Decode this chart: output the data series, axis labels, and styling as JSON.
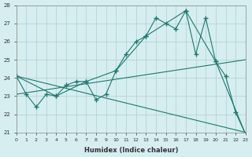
{
  "xlabel": "Humidex (Indice chaleur)",
  "ylabel": "",
  "bg_color": "#d6eef0",
  "grid_color": "#b0cdd0",
  "line_color": "#1a7a6e",
  "xlim": [
    0,
    23
  ],
  "ylim": [
    21,
    28
  ],
  "xticks": [
    0,
    1,
    2,
    3,
    4,
    5,
    6,
    7,
    8,
    9,
    10,
    11,
    12,
    13,
    14,
    15,
    16,
    17,
    18,
    19,
    20,
    21,
    22,
    23
  ],
  "yticks": [
    21,
    22,
    23,
    24,
    25,
    26,
    27,
    28
  ],
  "series": [
    [
      0,
      24.1
    ],
    [
      1,
      23.1
    ],
    [
      2,
      22.4
    ],
    [
      3,
      23.1
    ],
    [
      4,
      23.0
    ],
    [
      5,
      23.6
    ],
    [
      6,
      23.8
    ],
    [
      7,
      23.8
    ],
    [
      8,
      22.8
    ],
    [
      9,
      23.1
    ],
    [
      10,
      24.4
    ],
    [
      11,
      25.3
    ],
    [
      12,
      26.0
    ],
    [
      13,
      26.3
    ],
    [
      14,
      27.3
    ],
    [
      15,
      27.0
    ],
    [
      16,
      26.7
    ],
    [
      17,
      27.7
    ],
    [
      18,
      25.3
    ],
    [
      19,
      27.3
    ],
    [
      20,
      24.9
    ],
    [
      21,
      24.1
    ],
    [
      22,
      22.1
    ],
    [
      23,
      20.9
    ]
  ],
  "line2": [
    [
      0,
      24.1
    ],
    [
      4,
      23.0
    ],
    [
      7,
      23.8
    ],
    [
      10,
      24.4
    ],
    [
      13,
      26.3
    ],
    [
      17,
      27.7
    ],
    [
      20,
      24.9
    ],
    [
      23,
      20.9
    ]
  ],
  "line3": [
    [
      0,
      24.1
    ],
    [
      23,
      21.0
    ]
  ],
  "line4": [
    [
      0,
      23.1
    ],
    [
      23,
      25.0
    ]
  ]
}
